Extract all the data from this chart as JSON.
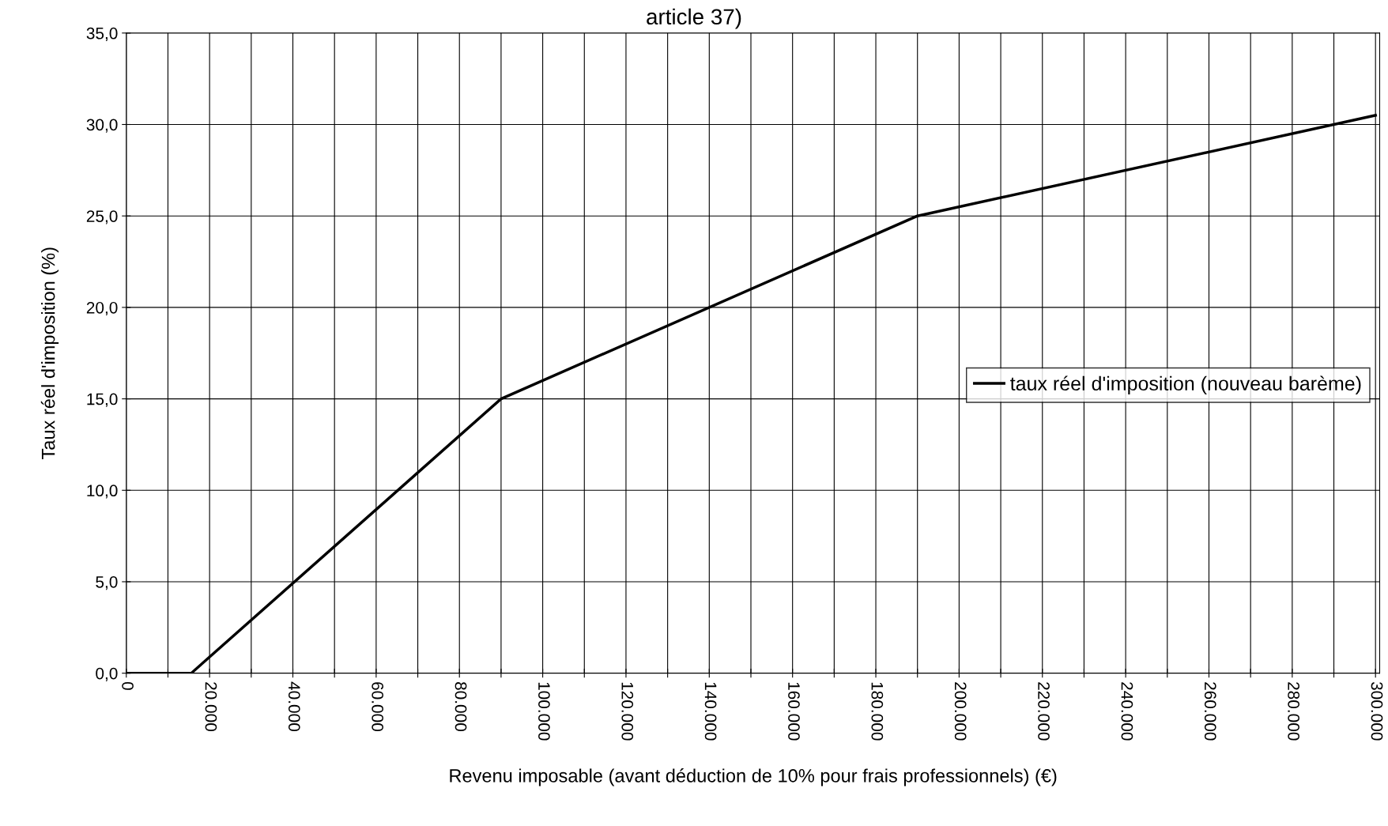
{
  "chart_data": {
    "type": "line",
    "title": "article 37)",
    "xlabel": "Revenu imposable (avant déduction de 10% pour frais professionnels) (€)",
    "ylabel": "Taux réel d'imposition (%)",
    "series": [
      {
        "name": "taux réel d'imposition (nouveau barème)",
        "color": "#000000",
        "x": [
          0,
          15600,
          90000,
          190000,
          300000
        ],
        "values": [
          0,
          0,
          15,
          25,
          30.5
        ]
      }
    ],
    "xlim": [
      0,
      301000
    ],
    "xticks": [
      {
        "value": 0,
        "label": "0"
      },
      {
        "value": 10000,
        "label": null
      },
      {
        "value": 20000,
        "label": "20.000"
      },
      {
        "value": 30000,
        "label": null
      },
      {
        "value": 40000,
        "label": "40.000"
      },
      {
        "value": 50000,
        "label": null
      },
      {
        "value": 60000,
        "label": "60.000"
      },
      {
        "value": 70000,
        "label": null
      },
      {
        "value": 80000,
        "label": "80.000"
      },
      {
        "value": 90000,
        "label": null
      },
      {
        "value": 100000,
        "label": "100.000"
      },
      {
        "value": 110000,
        "label": null
      },
      {
        "value": 120000,
        "label": "120.000"
      },
      {
        "value": 130000,
        "label": null
      },
      {
        "value": 140000,
        "label": "140.000"
      },
      {
        "value": 150000,
        "label": null
      },
      {
        "value": 160000,
        "label": "160.000"
      },
      {
        "value": 170000,
        "label": null
      },
      {
        "value": 180000,
        "label": "180.000"
      },
      {
        "value": 190000,
        "label": null
      },
      {
        "value": 200000,
        "label": "200.000"
      },
      {
        "value": 210000,
        "label": null
      },
      {
        "value": 220000,
        "label": "220.000"
      },
      {
        "value": 230000,
        "label": null
      },
      {
        "value": 240000,
        "label": "240.000"
      },
      {
        "value": 250000,
        "label": null
      },
      {
        "value": 260000,
        "label": "260.000"
      },
      {
        "value": 270000,
        "label": null
      },
      {
        "value": 280000,
        "label": "280.000"
      },
      {
        "value": 290000,
        "label": null
      },
      {
        "value": 300000,
        "label": "300.000"
      }
    ],
    "ylim": [
      0,
      35
    ],
    "yticks": [
      {
        "value": 0,
        "label": "0,0"
      },
      {
        "value": 5,
        "label": "5,0"
      },
      {
        "value": 10,
        "label": "10,0"
      },
      {
        "value": 15,
        "label": "15,0"
      },
      {
        "value": 20,
        "label": "20,0"
      },
      {
        "value": 25,
        "label": "25,0"
      },
      {
        "value": 30,
        "label": "30,0"
      },
      {
        "value": 35,
        "label": "35,0"
      }
    ],
    "grid": true,
    "legend": "right",
    "marker": "none",
    "line_style": "solid"
  }
}
